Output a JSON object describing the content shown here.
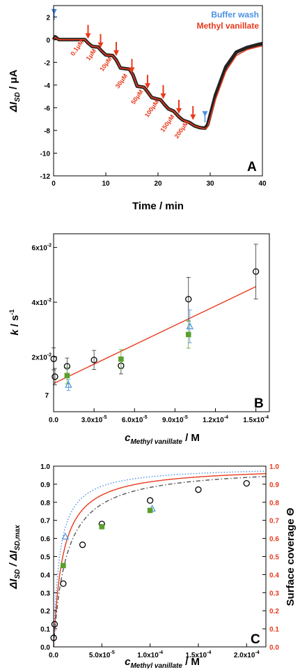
{
  "chart_data": [
    {
      "type": "line",
      "panel": "A",
      "xlabel": "Time / min",
      "ylabel_main": "ΔI",
      "ylabel_sub": "SD",
      "ylabel_unit": " / μA",
      "xlim": [
        0,
        40
      ],
      "ylim": [
        -12,
        3
      ],
      "x_ticks": [
        0,
        10,
        20,
        30,
        40
      ],
      "y_ticks": [
        2,
        0,
        -2,
        -4,
        -6,
        -8,
        -10,
        -12
      ],
      "legend": [
        {
          "label": "Buffer wash",
          "color": "#4a90e2"
        },
        {
          "label": "Methyl vanillate",
          "color": "#e8391b"
        }
      ],
      "series": [
        {
          "name": "Methyl vanillate",
          "color": "#e8391b",
          "x": [
            0,
            0.3,
            1,
            3,
            6,
            6.6,
            7.4,
            8.5,
            9.2,
            10,
            11.3,
            12,
            12.8,
            14.5,
            15.2,
            16,
            17.3,
            18,
            18.8,
            20.5,
            21.2,
            22,
            23,
            24,
            24.8,
            26,
            27,
            28,
            29,
            29.5,
            31,
            33,
            35,
            37,
            39,
            40
          ],
          "y": [
            0,
            0.2,
            0,
            0,
            0,
            -0.3,
            -0.6,
            -0.65,
            -1,
            -1.35,
            -1.4,
            -1.8,
            -2.5,
            -2.6,
            -3.1,
            -4.1,
            -4.2,
            -4.6,
            -5.1,
            -5.3,
            -5.7,
            -6.1,
            -6.3,
            -6.8,
            -7.1,
            -7.3,
            -7.6,
            -7.75,
            -7.85,
            -7.7,
            -5.3,
            -2.8,
            -1.4,
            -0.9,
            -0.65,
            -0.55
          ]
        },
        {
          "name": "Buffer wash trace",
          "color": "#222222",
          "x": [
            0,
            0.3,
            1,
            3,
            6,
            6.6,
            7.4,
            8.5,
            9.2,
            10,
            11.3,
            12,
            12.8,
            14.5,
            15.2,
            16,
            17.3,
            18,
            18.8,
            20.5,
            21.2,
            22,
            23,
            24,
            24.8,
            26,
            27,
            28,
            29,
            29.5,
            31,
            33,
            35,
            37,
            39,
            40
          ],
          "y": [
            0,
            0.25,
            0,
            0,
            0,
            -0.3,
            -0.6,
            -0.65,
            -1,
            -1.35,
            -1.4,
            -1.8,
            -2.5,
            -2.6,
            -3.1,
            -4.1,
            -4.2,
            -4.6,
            -5.1,
            -5.3,
            -5.7,
            -6.1,
            -6.3,
            -6.8,
            -7.1,
            -7.3,
            -7.6,
            -7.75,
            -7.8,
            -7.5,
            -4.9,
            -2.4,
            -1.1,
            -0.7,
            -0.45,
            -0.35
          ]
        }
      ],
      "injections": [
        {
          "x": 6.6,
          "y": -0.3,
          "label": "0.1μM"
        },
        {
          "x": 9,
          "y": -1.1,
          "label": "1μM"
        },
        {
          "x": 12,
          "y": -1.8,
          "label": "10μM"
        },
        {
          "x": 15,
          "y": -3.3,
          "label": "30μM"
        },
        {
          "x": 18,
          "y": -4.7,
          "label": "50μM"
        },
        {
          "x": 21,
          "y": -5.6,
          "label": "100μM"
        },
        {
          "x": 24,
          "y": -6.9,
          "label": "150μM"
        },
        {
          "x": 26.7,
          "y": -7.45,
          "label": "200μM"
        }
      ],
      "wash_markers": [
        {
          "x": 0.1,
          "y": 2.7
        },
        {
          "x": 29,
          "y": -6.3
        }
      ]
    },
    {
      "type": "scatter",
      "panel": "B",
      "xlabel_main": "c",
      "xlabel_sub": "Methyl vanillate",
      "xlabel_unit": " / M",
      "ylabel_main": "k",
      "ylabel_unit": " / s",
      "ylabel_sup": "-1",
      "xlim": [
        0,
        0.00016
      ],
      "ylim": [
        0,
        0.065
      ],
      "x_tick_values": [
        0,
        3e-05,
        6e-05,
        9e-05,
        0.00012,
        0.00015
      ],
      "x_tick_labels": [
        {
          "m": "0.0",
          "e": ""
        },
        {
          "m": "3.0x10",
          "e": "-5"
        },
        {
          "m": "6.0x10",
          "e": "-5"
        },
        {
          "m": "9.0x10",
          "e": "-5"
        },
        {
          "m": "1.2x10",
          "e": "-4"
        },
        {
          "m": "1.5x10",
          "e": "-4"
        }
      ],
      "y_tick_values": [
        0.02,
        0.04,
        0.06
      ],
      "y_tick_labels": [
        {
          "m": "2x10",
          "e": "-2"
        },
        {
          "m": "4x10",
          "e": "-2"
        },
        {
          "m": "6x10",
          "e": "-2"
        }
      ],
      "y_axis_stray_label": "7",
      "fit_line": {
        "x": [
          0,
          0.00015
        ],
        "y": [
          0.0103,
          0.0457
        ],
        "color": "#e8391b"
      },
      "series": [
        {
          "name": "circles",
          "marker": "circle",
          "color": "#000000",
          "x": [
            1e-07,
            1e-06,
            1e-05,
            3e-05,
            5e-05,
            0.0001,
            0.00015
          ],
          "y": [
            0.0193,
            0.0128,
            0.0166,
            0.0189,
            0.0168,
            0.0411,
            0.0512
          ],
          "err": [
            0.004,
            0.003,
            0.003,
            0.0035,
            0.003,
            0.008,
            0.01
          ]
        },
        {
          "name": "triangles",
          "marker": "triangle",
          "color": "#4a90e2",
          "x": [
            1e-05,
            0.0001
          ],
          "y": [
            0.0098,
            0.0312
          ],
          "err": [
            0.002,
            0.006
          ]
        },
        {
          "name": "squares",
          "marker": "square",
          "color": "#5aa02c",
          "x": [
            1e-05,
            5e-05,
            0.0001
          ],
          "y": [
            0.0132,
            0.0192,
            0.0282
          ],
          "err": [
            0.003,
            0.0035,
            0.005
          ]
        }
      ]
    },
    {
      "type": "scatter",
      "panel": "C",
      "xlabel_main": "c",
      "xlabel_sub": "Methyl vanillate",
      "xlabel_unit": " / M",
      "ylabel_left_main": "ΔI",
      "ylabel_left_sub1": "SD",
      "ylabel_left_mid": " / ΔI",
      "ylabel_left_sub2": "SD,max",
      "ylabel_right": "Surface coverage Θ",
      "xlim": [
        0,
        0.00022
      ],
      "ylim": [
        0,
        1
      ],
      "x_tick_values": [
        0,
        5e-05,
        0.0001,
        0.00015,
        0.0002
      ],
      "x_tick_labels": [
        {
          "m": "0.0",
          "e": ""
        },
        {
          "m": "5.0x10",
          "e": "-5"
        },
        {
          "m": "1.0x10",
          "e": "-4"
        },
        {
          "m": "1.5x10",
          "e": "-4"
        },
        {
          "m": "2.0x10",
          "e": "-4"
        }
      ],
      "y_ticks": [
        0.0,
        0.1,
        0.2,
        0.3,
        0.4,
        0.5,
        0.6,
        0.7,
        0.8,
        0.9,
        1.0
      ],
      "y_tick_labels": [
        "0.0",
        "0.1",
        "0.2",
        "0.3",
        "0.4",
        "0.5",
        "0.6",
        "0.7",
        "0.8",
        "0.9",
        "1.0"
      ],
      "curves": [
        {
          "name": "fit",
          "style": "solid",
          "color": "#e8391b",
          "k": 1.05,
          "theta_max": 1.0
        },
        {
          "name": "upper bound",
          "style": "dotted",
          "color": "#4a90e2",
          "k": 1.6,
          "theta_max": 1.0
        },
        {
          "name": "lower bound",
          "style": "dashdot",
          "color": "#555555",
          "k": 0.75,
          "theta_max": 1.0
        }
      ],
      "series": [
        {
          "name": "circles",
          "marker": "circle",
          "color": "#000000",
          "x": [
            1e-07,
            1e-06,
            1e-05,
            3e-05,
            5e-05,
            0.0001,
            0.00015,
            0.0002
          ],
          "y": [
            0.05,
            0.125,
            0.35,
            0.565,
            0.68,
            0.81,
            0.87,
            0.905
          ]
        },
        {
          "name": "triangles",
          "marker": "triangle",
          "color": "#4a90e2",
          "x": [
            1e-05,
            0.0001
          ],
          "y": [
            0.61,
            0.765
          ]
        },
        {
          "name": "squares",
          "marker": "square",
          "color": "#5aa02c",
          "x": [
            1e-05,
            5e-05,
            0.0001
          ],
          "y": [
            0.45,
            0.665,
            0.755
          ]
        }
      ]
    }
  ]
}
